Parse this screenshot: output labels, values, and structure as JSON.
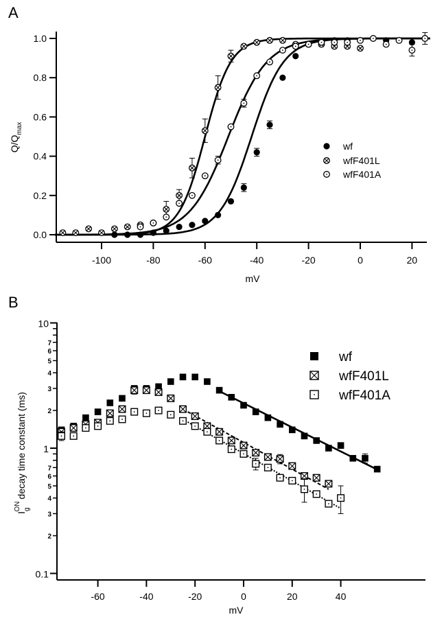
{
  "chart_data": [
    {
      "panel": "A",
      "type": "scatter",
      "title": "",
      "xlabel": "mV",
      "ylabel": "Q/Q",
      "ylabel_subscript": "max",
      "xlim": [
        -118,
        27
      ],
      "ylim": [
        0.0,
        1.0
      ],
      "xticks": [
        -100,
        -80,
        -60,
        -40,
        -20,
        0,
        20
      ],
      "xtick_labels": [
        "-100",
        "-80",
        "-60",
        "-40",
        "-20",
        "0",
        "20"
      ],
      "yticks": [
        0.0,
        0.2,
        0.4,
        0.6,
        0.8,
        1.0
      ],
      "ytick_labels": [
        "0.0",
        "0.2",
        "0.4",
        "0.6",
        "0.8",
        "1.0"
      ],
      "grid": false,
      "legend_position": "center-right",
      "series": [
        {
          "name": "wf",
          "marker": "filled-circle",
          "x": [
            -95,
            -90,
            -85,
            -80,
            -75,
            -70,
            -65,
            -60,
            -55,
            -50,
            -45,
            -40,
            -35,
            -30,
            -25,
            -20,
            -15,
            -10,
            -5,
            0,
            5,
            10,
            15,
            20
          ],
          "y": [
            0.0,
            0.0,
            0.0,
            0.01,
            0.02,
            0.04,
            0.05,
            0.07,
            0.1,
            0.17,
            0.24,
            0.42,
            0.56,
            0.8,
            0.91,
            0.97,
            0.98,
            0.99,
            0.99,
            0.99,
            1.0,
            0.99,
            0.99,
            0.98
          ],
          "fit": {
            "type": "boltzmann",
            "v_half": -42,
            "slope": 6.2
          }
        },
        {
          "name": "wfF401L",
          "marker": "crossed-circle",
          "x": [
            -115,
            -110,
            -105,
            -100,
            -95,
            -90,
            -85,
            -80,
            -75,
            -70,
            -65,
            -60,
            -55,
            -50,
            -45,
            -40,
            -35,
            -30,
            -25,
            -20,
            -15,
            -10,
            -5,
            0
          ],
          "y": [
            0.01,
            0.01,
            0.03,
            0.01,
            0.03,
            0.04,
            0.05,
            0.06,
            0.13,
            0.2,
            0.34,
            0.53,
            0.75,
            0.91,
            0.96,
            0.98,
            0.99,
            0.99,
            0.97,
            0.97,
            0.97,
            0.96,
            0.96,
            0.95
          ],
          "fit": {
            "type": "boltzmann",
            "v_half": -60,
            "slope": 5.0
          }
        },
        {
          "name": "wfF401A",
          "marker": "dotted-circle",
          "x": [
            -85,
            -80,
            -75,
            -70,
            -65,
            -60,
            -55,
            -50,
            -45,
            -40,
            -35,
            -30,
            -25,
            -20,
            -15,
            -10,
            -5,
            0,
            5,
            10,
            15,
            20,
            25
          ],
          "y": [
            0.04,
            0.06,
            0.09,
            0.16,
            0.2,
            0.3,
            0.38,
            0.55,
            0.67,
            0.81,
            0.88,
            0.94,
            0.96,
            0.97,
            0.98,
            0.98,
            0.98,
            0.99,
            1.0,
            0.97,
            0.99,
            0.94,
            1.0
          ],
          "fit": {
            "type": "boltzmann",
            "v_half": -51,
            "slope": 7.5
          }
        }
      ]
    },
    {
      "panel": "B",
      "type": "scatter",
      "title": "",
      "xlabel": "mV",
      "ylabel": "decay time constant (ms)",
      "ylabel_prefix": "I",
      "ylabel_prefix_sub": "g",
      "ylabel_prefix_sup": "ON",
      "yscale": "log",
      "xlim": [
        -77,
        58
      ],
      "ylim": [
        0.1,
        10
      ],
      "xticks": [
        -60,
        -40,
        -20,
        0,
        20,
        40
      ],
      "xtick_labels": [
        "-60",
        "-40",
        "-20",
        "0",
        "20",
        "40"
      ],
      "yticks_major": [
        0.1,
        1,
        10
      ],
      "ytick_major_labels": [
        "0.1",
        "1",
        "10"
      ],
      "yticks_minor_labels": [
        "2",
        "3",
        "4",
        "5",
        "6",
        "7"
      ],
      "grid": false,
      "legend_position": "top-right",
      "series": [
        {
          "name": "wf",
          "marker": "filled-square",
          "x": [
            -75,
            -70,
            -65,
            -60,
            -55,
            -50,
            -45,
            -40,
            -35,
            -30,
            -25,
            -20,
            -15,
            -10,
            -5,
            0,
            5,
            10,
            15,
            20,
            25,
            30,
            35,
            40,
            45,
            50,
            55
          ],
          "y": [
            1.4,
            1.5,
            1.75,
            1.95,
            2.3,
            2.5,
            3.0,
            3.0,
            3.1,
            3.4,
            3.7,
            3.7,
            3.4,
            2.9,
            2.55,
            2.2,
            1.95,
            1.75,
            1.55,
            1.4,
            1.25,
            1.15,
            1.0,
            1.05,
            0.83,
            0.83,
            0.68
          ],
          "fit": {
            "style": "solid",
            "x_range": [
              -10,
              56
            ],
            "y_start": 2.85,
            "y_end": 0.66
          }
        },
        {
          "name": "wfF401L",
          "marker": "crossed-square",
          "x": [
            -75,
            -70,
            -65,
            -60,
            -55,
            -50,
            -45,
            -40,
            -35,
            -30,
            -25,
            -20,
            -15,
            -10,
            -5,
            0,
            5,
            10,
            15,
            20,
            25,
            30,
            35
          ],
          "y": [
            1.35,
            1.45,
            1.55,
            1.6,
            1.9,
            2.05,
            2.9,
            2.9,
            2.8,
            2.5,
            2.05,
            1.8,
            1.5,
            1.35,
            1.15,
            1.05,
            0.92,
            0.85,
            0.82,
            0.72,
            0.6,
            0.58,
            0.52
          ],
          "fit": {
            "style": "dashed",
            "x_range": [
              -25,
              35
            ],
            "y_start": 2.05,
            "y_end": 0.47
          }
        },
        {
          "name": "wfF401A",
          "marker": "dotted-square",
          "x": [
            -75,
            -70,
            -65,
            -60,
            -55,
            -50,
            -45,
            -40,
            -35,
            -30,
            -25,
            -20,
            -15,
            -10,
            -5,
            0,
            5,
            10,
            15,
            20,
            25,
            30,
            35,
            40
          ],
          "y": [
            1.25,
            1.25,
            1.45,
            1.5,
            1.65,
            1.7,
            1.95,
            1.9,
            2.0,
            1.85,
            1.65,
            1.5,
            1.35,
            1.15,
            0.98,
            0.9,
            0.75,
            0.7,
            0.58,
            0.55,
            0.47,
            0.43,
            0.36,
            0.4
          ],
          "fit": {
            "style": "dotted",
            "x_range": [
              -25,
              40
            ],
            "y_start": 1.7,
            "y_end": 0.33
          }
        }
      ]
    }
  ],
  "panels": {
    "a_label": "A",
    "b_label": "B"
  }
}
